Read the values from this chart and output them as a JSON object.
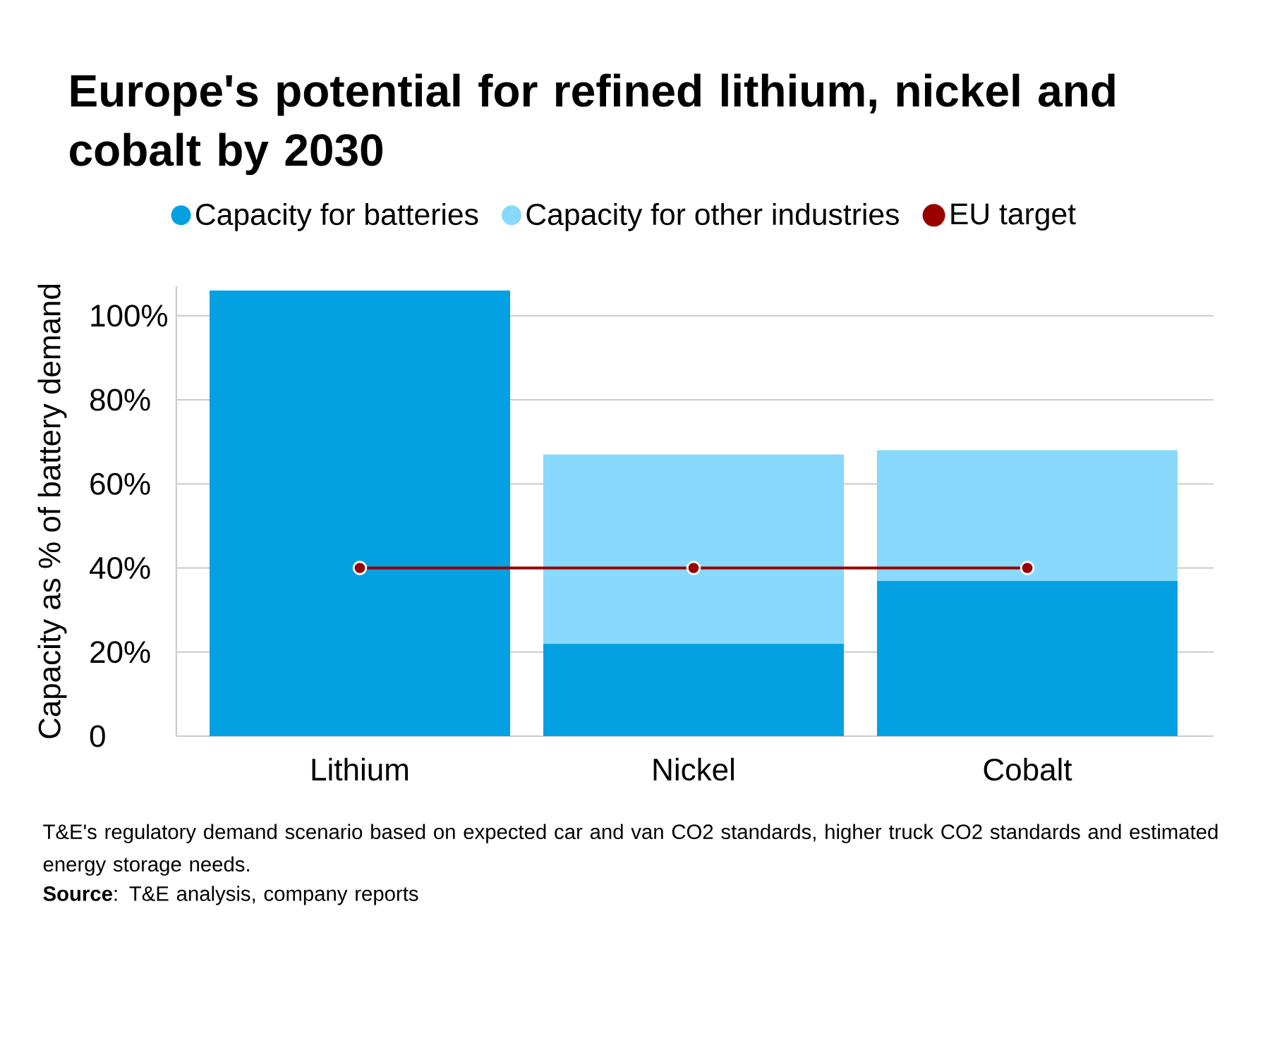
{
  "chart_data": {
    "type": "bar",
    "title": "Europe's potential for refined lithium, nickel and cobalt by 2030",
    "ylabel": "Capacity as % of battery demand",
    "categories": [
      "Lithium",
      "Nickel",
      "Cobalt"
    ],
    "stacked": true,
    "series": [
      {
        "name": "Capacity for batteries",
        "color": "#03a1e2",
        "values": [
          106,
          22,
          37
        ]
      },
      {
        "name": "Capacity for other industries",
        "color": "#88d9fc",
        "values": [
          null,
          45,
          31
        ]
      },
      {
        "name": "EU target",
        "type": "line",
        "color": "#990000",
        "marker": "circle",
        "values": [
          40,
          40,
          40
        ]
      }
    ],
    "ylim": [
      0,
      107
    ],
    "yticks": [
      0,
      {
        "value": 20,
        "label": "20%"
      },
      {
        "value": 40,
        "label": "40%"
      },
      {
        "value": 60,
        "label": "60%"
      },
      {
        "value": 80,
        "label": "80%"
      },
      {
        "value": 100,
        "label": "100%"
      }
    ],
    "grid": "y",
    "legend": "top",
    "annotations": [
      "T&E's regulatory demand scenario based on expected car and van CO2 standards, higher truck CO2 standards and estimated energy storage needs.",
      "**Source**: T&E analysis, company reports"
    ]
  }
}
